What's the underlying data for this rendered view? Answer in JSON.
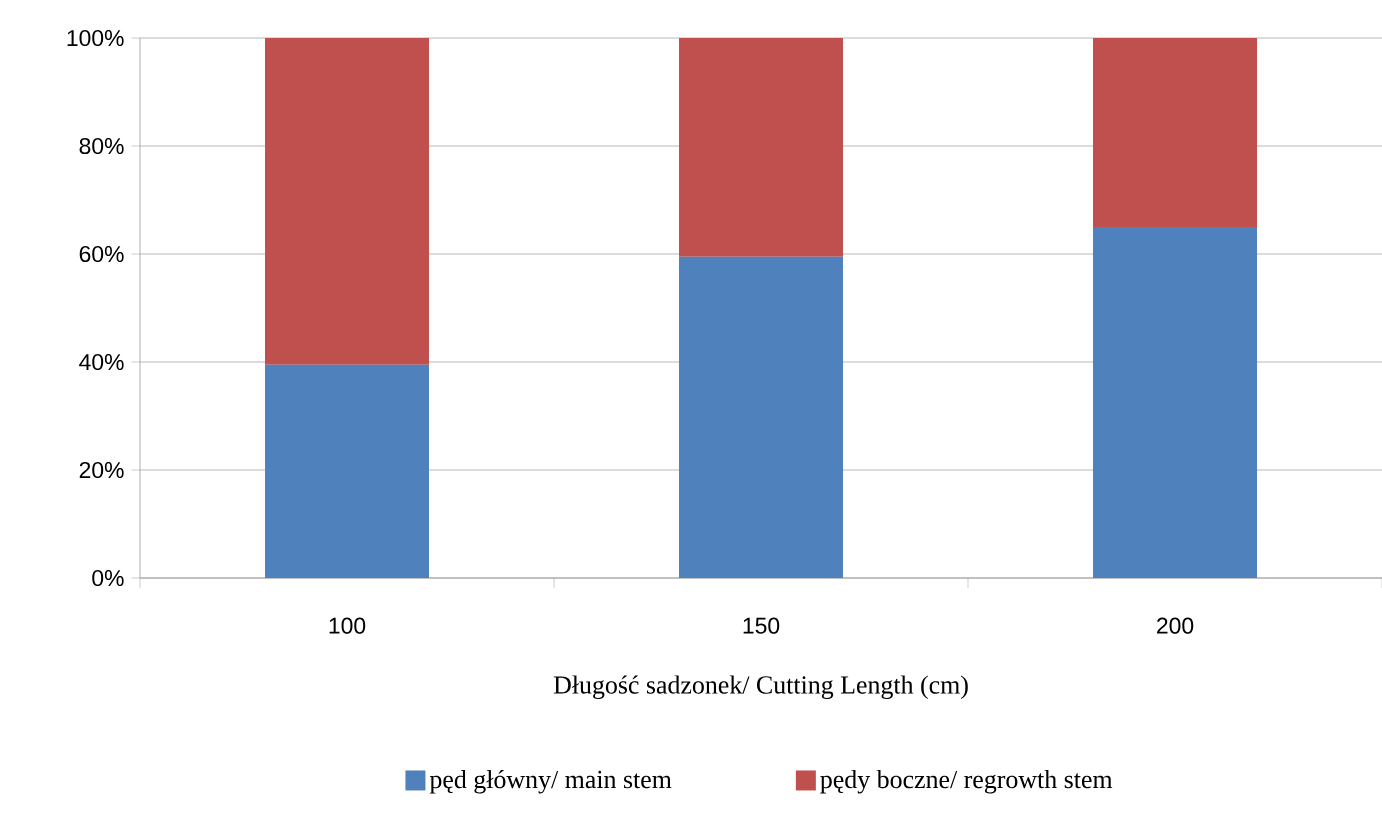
{
  "chart_data": {
    "type": "bar",
    "stacked": true,
    "xlabel": "Długość sadzonek/ Cutting Length (cm)",
    "categories": [
      "100",
      "150",
      "200"
    ],
    "series": [
      {
        "name": "pęd główny/ main stem",
        "color": "#4f81bd",
        "values": [
          39.5,
          59.5,
          65
        ]
      },
      {
        "name": "pędy boczne/ regrowth stem",
        "color": "#c0504d",
        "values": [
          60.5,
          40.5,
          35
        ]
      }
    ],
    "ylim": [
      0,
      100
    ],
    "yticks": [
      {
        "value": 0,
        "label": "0%"
      },
      {
        "value": 20,
        "label": "20%"
      },
      {
        "value": 40,
        "label": "40%"
      },
      {
        "value": 60,
        "label": "60%"
      },
      {
        "value": 80,
        "label": "80%"
      },
      {
        "value": 100,
        "label": "100%"
      }
    ],
    "grid": "y",
    "legend": "bottom"
  }
}
